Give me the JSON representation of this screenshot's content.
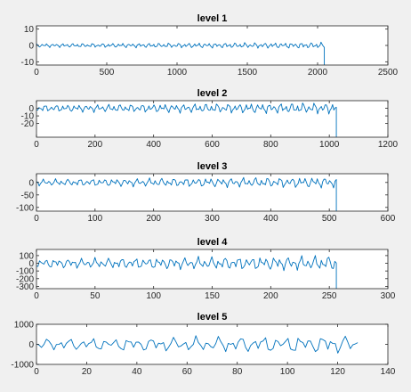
{
  "figure": {
    "background": "#f0f0f0",
    "axes_background": "#ffffff",
    "line_color": "#0072bd"
  },
  "chart_data": [
    {
      "type": "line",
      "title": "level 1",
      "xlim": [
        0,
        2500
      ],
      "ylim": [
        -12,
        12
      ],
      "xticks": [
        0,
        500,
        1000,
        1500,
        2000,
        2500
      ],
      "yticks": [
        10,
        0,
        -10
      ],
      "series": [
        {
          "x": [
            0,
            2048
          ],
          "y": [
            0,
            0
          ],
          "amplitude": 1.5,
          "end_drop": -12,
          "n_points": 260
        }
      ]
    },
    {
      "type": "line",
      "title": "level 2",
      "xlim": [
        0,
        1200
      ],
      "ylim": [
        -38,
        10
      ],
      "xticks": [
        0,
        200,
        400,
        600,
        800,
        1000,
        1200
      ],
      "yticks": [
        0,
        -10,
        -20
      ],
      "series": [
        {
          "x": [
            0,
            1024
          ],
          "y": [
            0,
            0
          ],
          "amplitude": 6,
          "end_drop": -38,
          "n_points": 240
        }
      ]
    },
    {
      "type": "line",
      "title": "level 3",
      "xlim": [
        0,
        600
      ],
      "ylim": [
        -115,
        35
      ],
      "xticks": [
        0,
        100,
        200,
        300,
        400,
        500,
        600
      ],
      "yticks": [
        0,
        -50,
        -100
      ],
      "series": [
        {
          "x": [
            0,
            512
          ],
          "y": [
            0,
            0
          ],
          "amplitude": 18,
          "end_drop": -115,
          "n_points": 220
        }
      ]
    },
    {
      "type": "line",
      "title": "level 4",
      "xlim": [
        0,
        300
      ],
      "ylim": [
        -330,
        180
      ],
      "xticks": [
        0,
        50,
        100,
        150,
        200,
        250,
        300
      ],
      "yticks": [
        100,
        0,
        -100,
        -200,
        -300
      ],
      "series": [
        {
          "x": [
            0,
            256
          ],
          "y": [
            0,
            0
          ],
          "amplitude": 80,
          "end_drop": -330,
          "n_points": 200
        }
      ]
    },
    {
      "type": "line",
      "title": "level 5",
      "xlim": [
        0,
        140
      ],
      "ylim": [
        -1000,
        1000
      ],
      "xticks": [
        0,
        20,
        40,
        60,
        80,
        100,
        120,
        140
      ],
      "yticks": [
        1000,
        0,
        -1000
      ],
      "series": [
        {
          "x": [
            0,
            128
          ],
          "y": [
            0,
            0
          ],
          "amplitude": 380,
          "end_drop": null,
          "n_points": 129
        }
      ]
    }
  ]
}
